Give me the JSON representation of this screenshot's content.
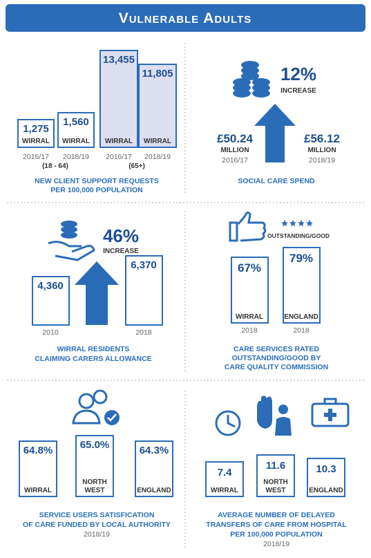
{
  "header": {
    "title": "Vulnerable Adults"
  },
  "panels": [
    {
      "boxes": [
        {
          "value": "1,275",
          "label": [
            "WIRRAL"
          ],
          "year": "2016/17"
        },
        {
          "value": "1,560",
          "label": [
            "WIRRAL"
          ],
          "year": "2018/19"
        },
        {
          "value": "13,455",
          "label": [
            "WIRRAL"
          ],
          "year": "2016/17"
        },
        {
          "value": "11,805",
          "label": [
            "WIRRAL"
          ],
          "year": "2018/19"
        }
      ],
      "groups": [
        "(18 - 64)",
        "(65+)"
      ],
      "caption": [
        "NEW CLIENT SUPPORT REQUESTS",
        "PER 100,000 POPULATION"
      ]
    },
    {
      "change": "12%",
      "change_label": "INCREASE",
      "from": {
        "value": "£50.24",
        "unit": "MILLION",
        "year": "2016/17"
      },
      "to": {
        "value": "£56.12",
        "unit": "MILLION",
        "year": "2018/19"
      },
      "caption": [
        "SOCIAL CARE SPEND"
      ]
    },
    {
      "change": "46%",
      "change_label": "INCREASE",
      "boxes": [
        {
          "value": "4,360",
          "year": "2010"
        },
        {
          "value": "6,370",
          "year": "2018"
        }
      ],
      "caption": [
        "WIRRAL RESIDENTS",
        "CLAIMING CARERS ALLOWANCE"
      ]
    },
    {
      "rating": "OUTSTANDING/GOOD",
      "boxes": [
        {
          "value": "67%",
          "label": [
            "WIRRAL"
          ],
          "year": "2018"
        },
        {
          "value": "79%",
          "label": [
            "ENGLAND"
          ],
          "year": "2018"
        }
      ],
      "caption": [
        "CARE SERVICES RATED",
        "OUTSTANDING/GOOD BY",
        "CARE QUALITY COMMISSION"
      ]
    },
    {
      "boxes": [
        {
          "value": "64.8%",
          "label": [
            "WIRRAL"
          ]
        },
        {
          "value": "65.0%",
          "label": [
            "NORTH",
            "WEST"
          ]
        },
        {
          "value": "64.3%",
          "label": [
            "ENGLAND"
          ]
        }
      ],
      "caption": [
        "SERVICE USERS SATISFICATION",
        "OF CARE FUNDED BY LOCAL AUTHORITY"
      ],
      "year": "2018/19"
    },
    {
      "boxes": [
        {
          "value": "7.4",
          "label": [
            "WIRRAL"
          ]
        },
        {
          "value": "11.6",
          "label": [
            "NORTH",
            "WEST"
          ]
        },
        {
          "value": "10.3",
          "label": [
            "ENGLAND"
          ]
        }
      ],
      "caption": [
        "AVERAGE NUMBER OF DELAYED",
        "TRANSFERS OF CARE FROM HOSPITAL",
        "PER 100,000 POPULATION"
      ],
      "year": "2018/19"
    }
  ]
}
